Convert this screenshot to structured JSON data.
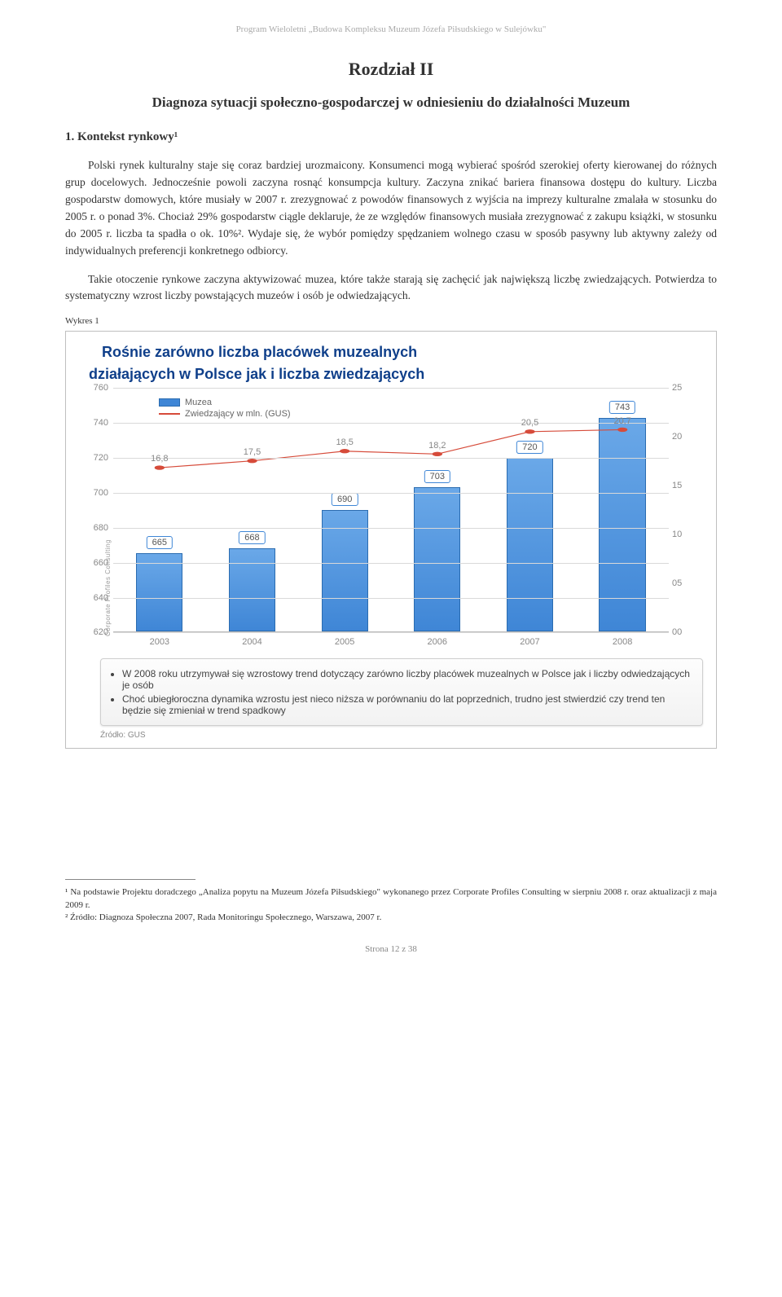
{
  "header": {
    "program_line": "Program Wieloletni „Budowa Kompleksu Muzeum Józefa Piłsudskiego w Sulejówku\""
  },
  "chapter": {
    "title": "Rozdział II",
    "subtitle": "Diagnoza sytuacji społeczno-gospodarczej w odniesieniu do działalności Muzeum"
  },
  "section": {
    "heading": "1. Kontekst rynkowy¹"
  },
  "paragraphs": {
    "p1": "Polski rynek kulturalny staje się coraz bardziej urozmaicony. Konsumenci mogą wybierać spośród szerokiej oferty kierowanej do różnych grup docelowych. Jednocześnie powoli zaczyna rosnąć konsumpcja kultury. Zaczyna znikać bariera finansowa dostępu do kultury. Liczba gospodarstw domowych, które musiały w 2007 r. zrezygnować z powodów finansowych z wyjścia na imprezy kulturalne zmalała w stosunku do 2005 r. o ponad 3%. Chociaż 29% gospodarstw ciągle deklaruje, że ze względów finansowych musiała zrezygnować z zakupu książki, w stosunku do 2005 r. liczba ta spadła o ok. 10%². Wydaje się, że wybór pomiędzy spędzaniem wolnego czasu w sposób pasywny lub aktywny zależy od indywidualnych preferencji konkretnego odbiorcy.",
    "p2": "Takie otoczenie rynkowe zaczyna aktywizować muzea, które także starają się zachęcić jak największą liczbę zwiedzających. Potwierdza to systematyczny wzrost liczby powstających muzeów i osób je odwiedzających."
  },
  "figure": {
    "label": "Wykres 1"
  },
  "chart": {
    "title_line1": "Rośnie zarówno liczba placówek muzealnych",
    "title_line2": "działających w Polsce jak i liczba zwiedzających",
    "legend": {
      "bar": "Muzea",
      "line": "Zwiedzający w mln. (GUS)"
    },
    "y_left": {
      "min": 620,
      "max": 760,
      "step": 20,
      "ticks": [
        620,
        640,
        660,
        680,
        700,
        720,
        740,
        760
      ]
    },
    "y_right": {
      "min": 0,
      "max": 25,
      "step": 5,
      "ticks": [
        "00",
        "05",
        "10",
        "15",
        "20",
        "25"
      ]
    },
    "categories": [
      "2003",
      "2004",
      "2005",
      "2006",
      "2007",
      "2008"
    ],
    "bars": [
      665,
      668,
      690,
      703,
      720,
      743
    ],
    "line": [
      16.8,
      17.5,
      18.5,
      18.2,
      20.5,
      20.7
    ],
    "bar_color_top": "#6aa8e8",
    "bar_color_bottom": "#3f86d6",
    "bar_border": "#2b6cb0",
    "line_color": "#d64b3a",
    "grid_color": "#d9d9d9",
    "background": "#ffffff",
    "notes": [
      "W 2008 roku utrzymywał się wzrostowy trend dotyczący zarówno liczby placówek muzealnych w Polsce jak i liczby odwiedzających je osób",
      "Choć ubiegłoroczna dynamika wzrostu jest nieco niższa w porównaniu do lat poprzednich, trudno jest stwierdzić czy trend ten będzie się zmieniał w trend spadkowy"
    ],
    "source": "Źródło: GUS",
    "cp_brand": "Corporate Profiles Consulting"
  },
  "footnotes": {
    "f1": "¹ Na podstawie Projektu doradczego „Analiza popytu na Muzeum Józefa Piłsudskiego\" wykonanego przez Corporate Profiles Consulting w sierpniu 2008 r. oraz aktualizacji z maja 2009 r.",
    "f2": "² Źródło: Diagnoza Społeczna 2007, Rada Monitoringu Społecznego, Warszawa, 2007 r."
  },
  "footer": {
    "page": "Strona 12 z 38"
  }
}
